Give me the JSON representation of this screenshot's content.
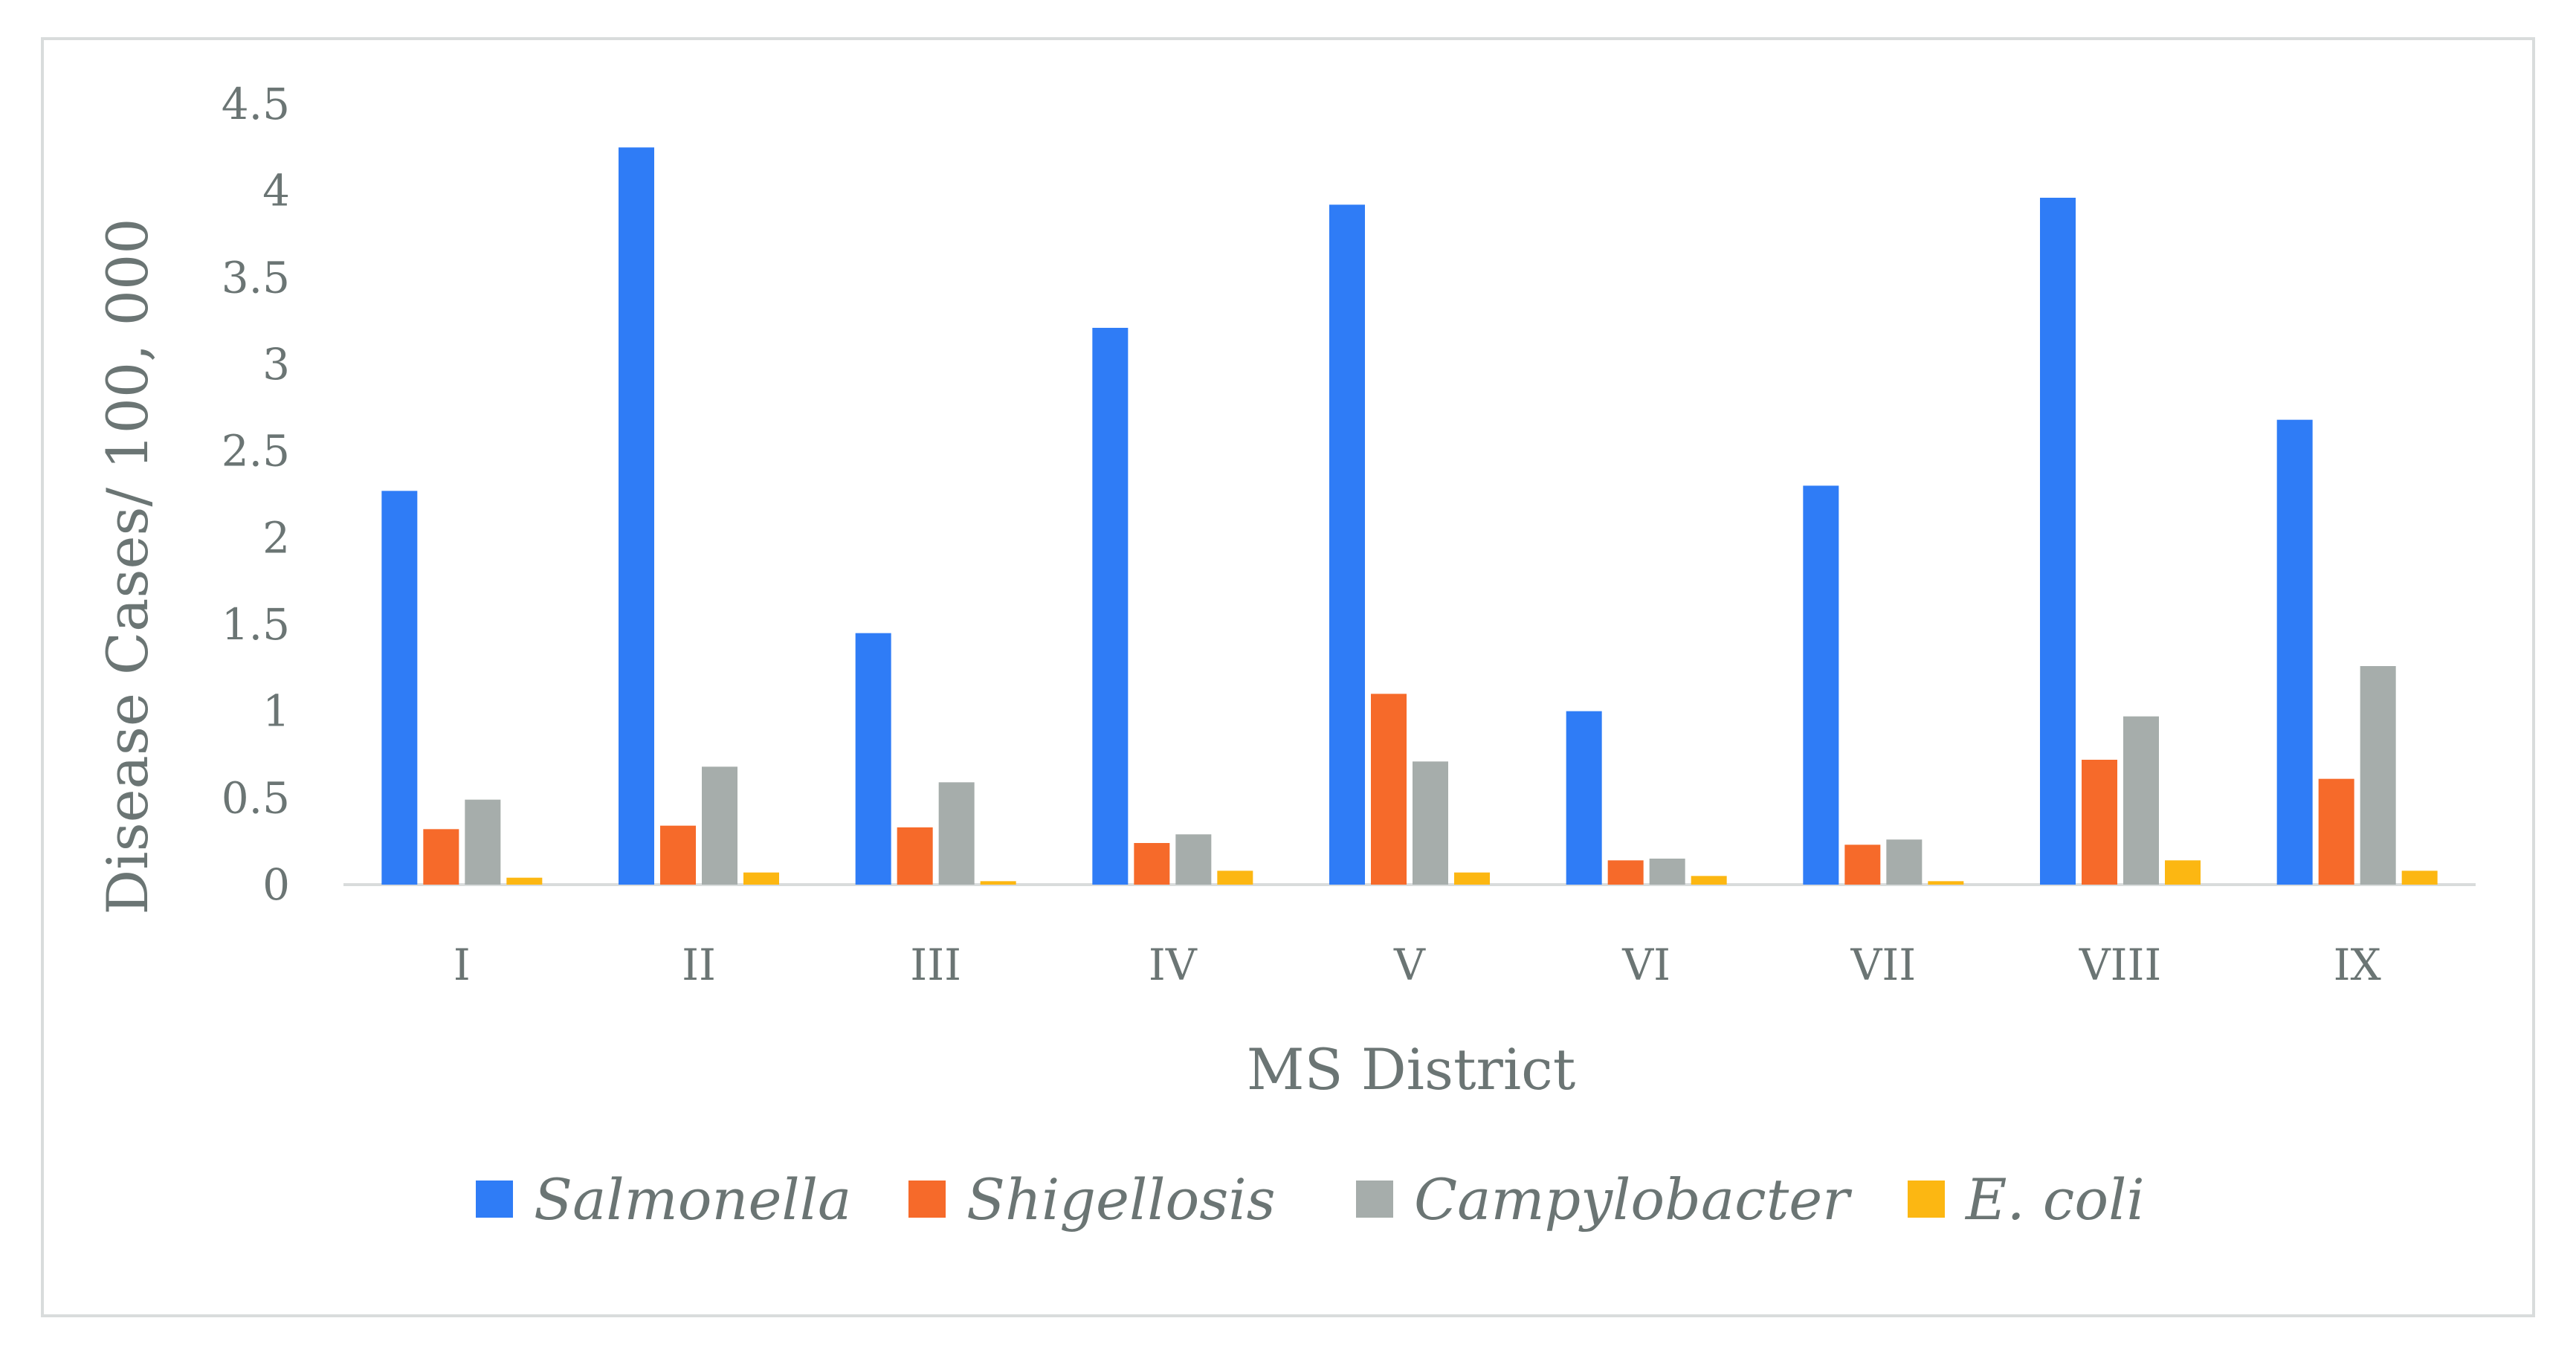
{
  "chart_data": {
    "type": "bar",
    "title": "",
    "xlabel": "MS District",
    "ylabel": "Disease Cases/ 100, 000",
    "ylim": [
      0,
      4.5
    ],
    "yticks": [
      "0",
      "0.5",
      "1",
      "1.5",
      "2",
      "2.5",
      "3",
      "3.5",
      "4",
      "4.5"
    ],
    "grid": false,
    "legend_position": "bottom",
    "categories": [
      "I",
      "II",
      "III",
      "IV",
      "V",
      "VI",
      "VII",
      "VIII",
      "IX"
    ],
    "series": [
      {
        "name": "Salmonella",
        "color": "#2f7cf6",
        "values": [
          2.27,
          4.25,
          1.45,
          3.21,
          3.92,
          1.0,
          2.3,
          3.96,
          2.68
        ]
      },
      {
        "name": "Shigellosis",
        "color": "#f66a2a",
        "values": [
          0.32,
          0.34,
          0.33,
          0.24,
          1.1,
          0.14,
          0.23,
          0.72,
          0.61
        ]
      },
      {
        "name": "Campylobacter",
        "color": "#a6adab",
        "values": [
          0.49,
          0.68,
          0.59,
          0.29,
          0.71,
          0.15,
          0.26,
          0.97,
          1.26
        ]
      },
      {
        "name": "E. coli",
        "color": "#fcb712",
        "values": [
          0.04,
          0.07,
          0.02,
          0.08,
          0.07,
          0.05,
          0.02,
          0.14,
          0.08
        ]
      }
    ]
  }
}
